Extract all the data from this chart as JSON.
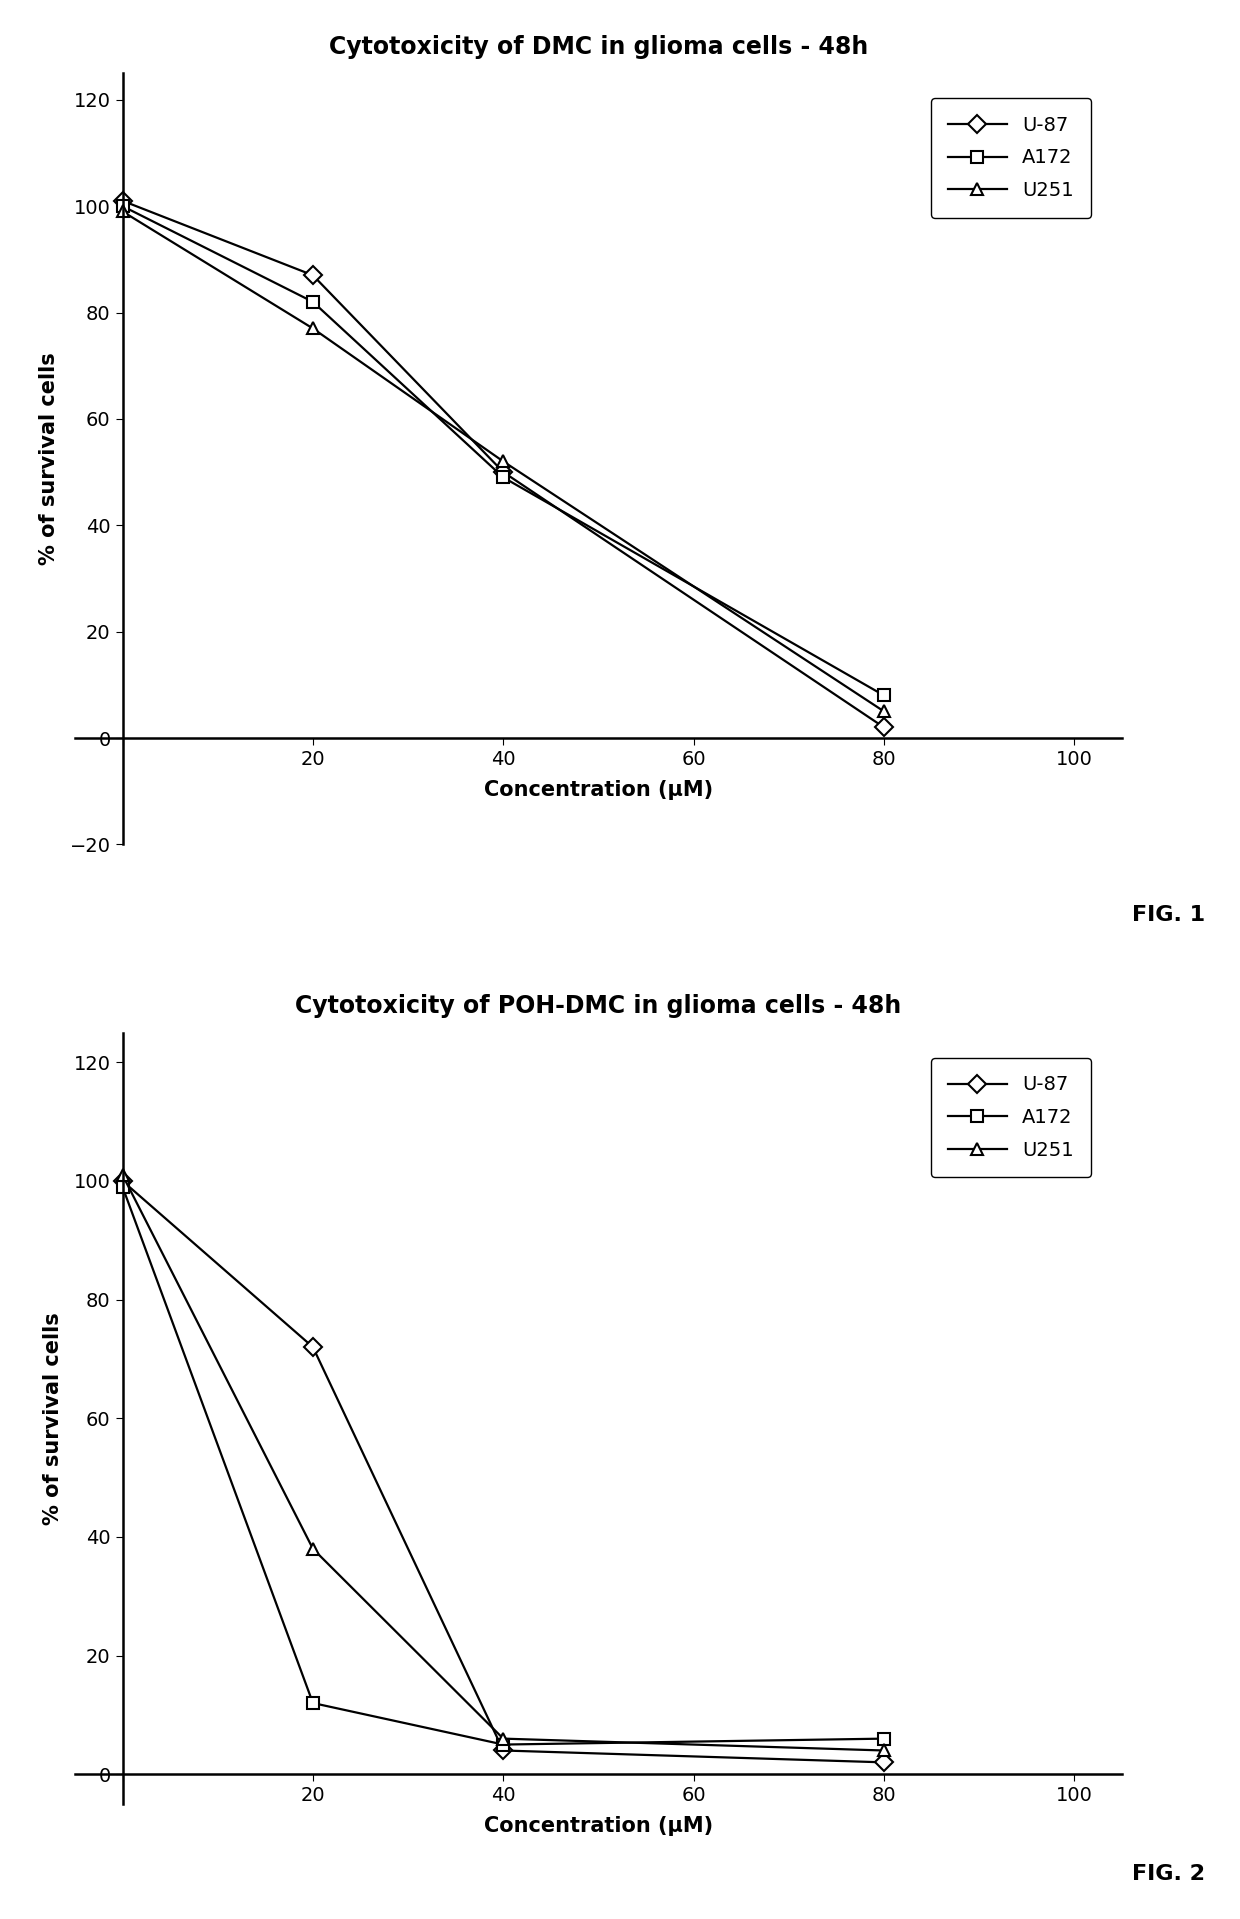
{
  "fig1": {
    "title": "Cytotoxicity of DMC in glioma cells - 48h",
    "xlabel": "Concentration (μM)",
    "ylabel": "% of survival cells",
    "xlim": [
      -5,
      105
    ],
    "ylim": [
      -20,
      125
    ],
    "xticks": [
      0,
      20,
      40,
      60,
      80,
      100
    ],
    "yticks": [
      -20,
      0,
      20,
      40,
      60,
      80,
      100,
      120
    ],
    "xticklabels": [
      "",
      "20",
      "40",
      "60",
      "80",
      "100"
    ],
    "series": [
      {
        "label": "U-87",
        "x": [
          0,
          20,
          40,
          80
        ],
        "y": [
          101,
          87,
          50,
          2
        ],
        "marker": "D",
        "linestyle": "-",
        "color": "#000000"
      },
      {
        "label": "A172",
        "x": [
          0,
          20,
          40,
          80
        ],
        "y": [
          100,
          82,
          49,
          8
        ],
        "marker": "s",
        "linestyle": "-",
        "color": "#000000"
      },
      {
        "label": "U251",
        "x": [
          0,
          20,
          40,
          80
        ],
        "y": [
          99,
          77,
          52,
          5
        ],
        "marker": "^",
        "linestyle": "-",
        "color": "#000000"
      }
    ],
    "fig_label": "FIG. 1"
  },
  "fig2": {
    "title": "Cytotoxicity of POH-DMC in glioma cells - 48h",
    "xlabel": "Concentration (μM)",
    "ylabel": "% of survival cells",
    "xlim": [
      -5,
      105
    ],
    "ylim": [
      -5,
      125
    ],
    "xticks": [
      0,
      20,
      40,
      60,
      80,
      100
    ],
    "yticks": [
      0,
      20,
      40,
      60,
      80,
      100,
      120
    ],
    "xticklabels": [
      "",
      "20",
      "40",
      "60",
      "80",
      "100"
    ],
    "series": [
      {
        "label": "U-87",
        "x": [
          0,
          20,
          40,
          80
        ],
        "y": [
          100,
          72,
          4,
          2
        ],
        "marker": "D",
        "linestyle": "-",
        "color": "#000000"
      },
      {
        "label": "A172",
        "x": [
          0,
          20,
          40,
          80
        ],
        "y": [
          99,
          12,
          5,
          6
        ],
        "marker": "s",
        "linestyle": "-",
        "color": "#000000"
      },
      {
        "label": "U251",
        "x": [
          0,
          20,
          40,
          80
        ],
        "y": [
          101,
          38,
          6,
          4
        ],
        "marker": "^",
        "linestyle": "-",
        "color": "#000000"
      }
    ],
    "fig_label": "FIG. 2"
  },
  "title_fontsize": 17,
  "axis_label_fontsize": 15,
  "tick_fontsize": 14,
  "legend_fontsize": 14,
  "fig_label_fontsize": 16,
  "marker_size": 9,
  "linewidth": 1.6,
  "background_color": "#ffffff"
}
